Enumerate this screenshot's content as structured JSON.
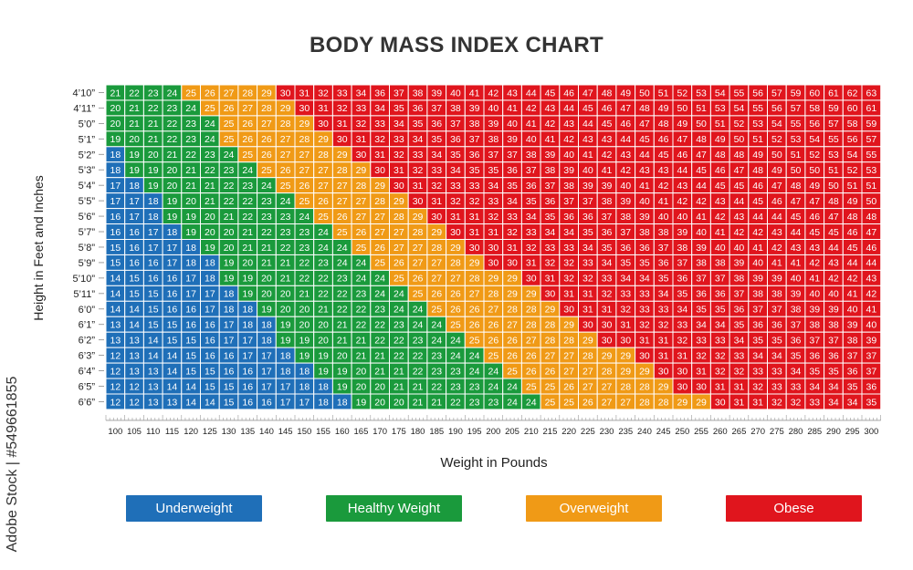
{
  "title": "BODY MASS INDEX CHART",
  "watermark": "Adobe Stock | #549661855",
  "legend": [
    {
      "label": "Underweight",
      "color": "#1f6fb8"
    },
    {
      "label": "Healthy Weight",
      "color": "#1a9a3c"
    },
    {
      "label": "Overweight",
      "color": "#f09a16"
    },
    {
      "label": "Obese",
      "color": "#e0151d"
    }
  ],
  "chart_data": {
    "type": "heatmap",
    "title": "BODY MASS INDEX CHART",
    "xlabel": "Weight in Pounds",
    "ylabel": "Height in Feet and Inches",
    "x": [
      100,
      105,
      110,
      115,
      120,
      125,
      130,
      135,
      140,
      145,
      150,
      155,
      160,
      165,
      170,
      175,
      180,
      185,
      190,
      195,
      200,
      205,
      210,
      215,
      220,
      225,
      230,
      235,
      240,
      245,
      250,
      255,
      260,
      265,
      270,
      275,
      280,
      285,
      290,
      295,
      300
    ],
    "y": [
      "4’10”",
      "4’11”",
      "5’0”",
      "5’1”",
      "5’2”",
      "5’3”",
      "5’4”",
      "5’5”",
      "5’6”",
      "5’7”",
      "5’8”",
      "5’9”",
      "5’10”",
      "5’11”",
      "6’0”",
      "6’1”",
      "6’2”",
      "6’3”",
      "6’4”",
      "6’5”",
      "6’6”"
    ],
    "heights_in": [
      58,
      59,
      60,
      61,
      62,
      63,
      64,
      65,
      66,
      67,
      68,
      69,
      70,
      71,
      72,
      73,
      74,
      75,
      76,
      77,
      78
    ],
    "categories": [
      {
        "label": "Underweight",
        "max_bmi": 18,
        "color": "#1f6fb8"
      },
      {
        "label": "Healthy Weight",
        "max_bmi": 24,
        "color": "#1a9a3c"
      },
      {
        "label": "Overweight",
        "max_bmi": 29,
        "color": "#f09a16"
      },
      {
        "label": "Obese",
        "max_bmi": 99,
        "color": "#e0151d"
      }
    ],
    "values_formula": "round(703 * weight_lb / height_in^2)",
    "grid": true,
    "legend_position": "bottom"
  }
}
